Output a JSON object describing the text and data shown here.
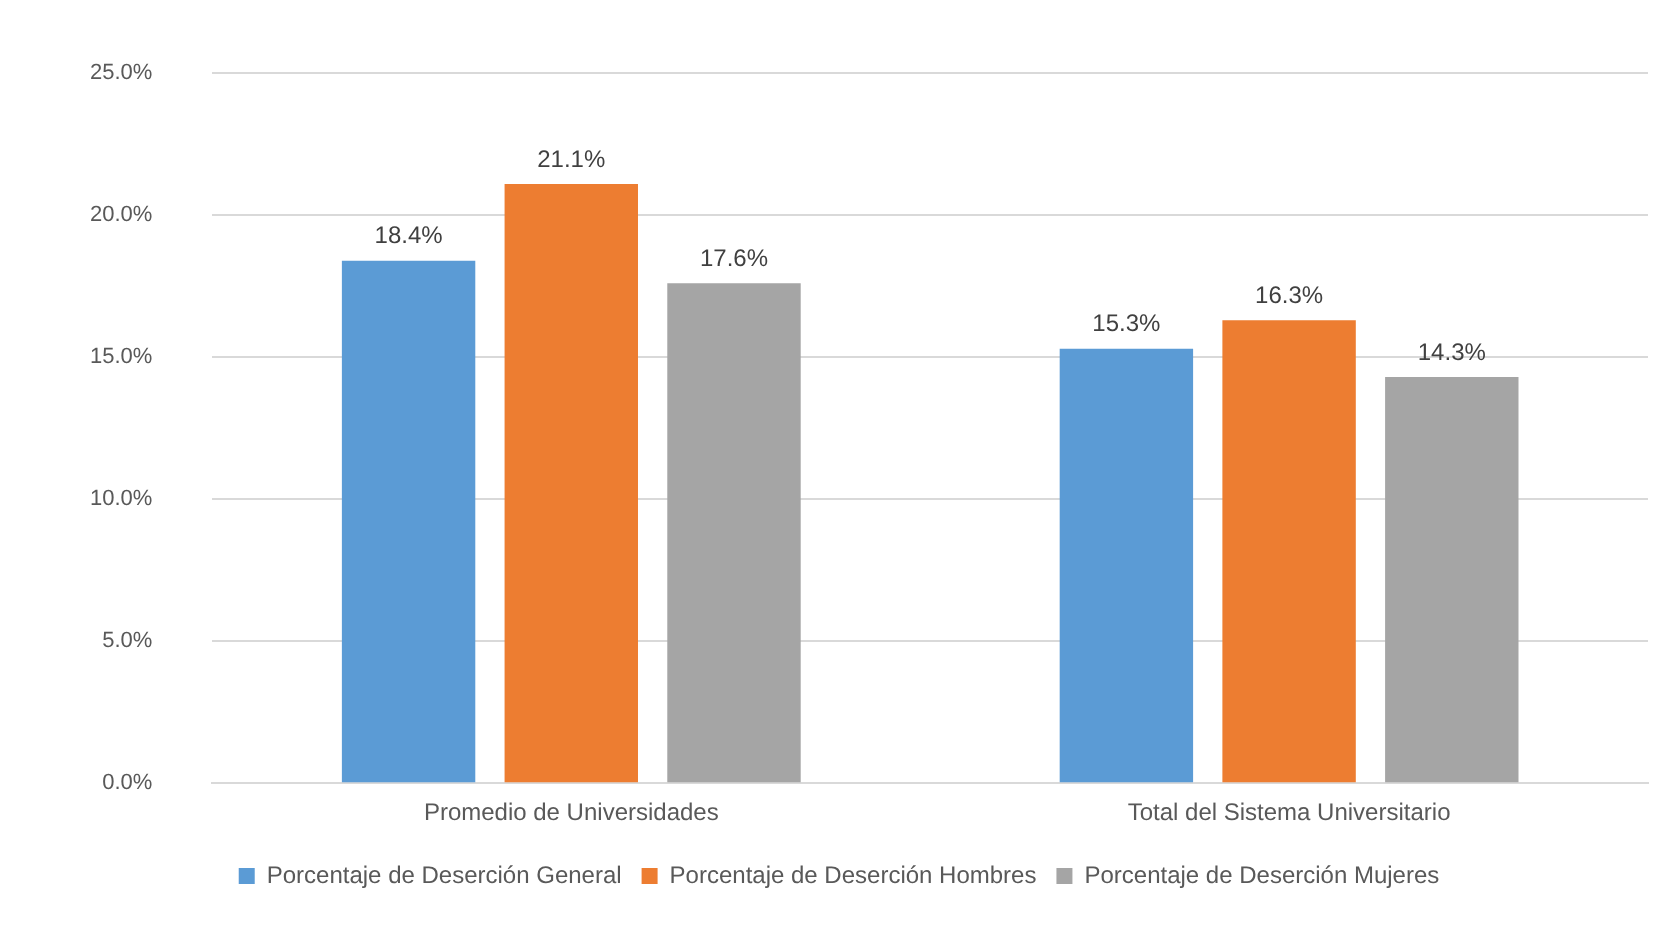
{
  "chart_data": {
    "type": "bar",
    "categories": [
      "Promedio de Universidades",
      "Total del Sistema Universitario"
    ],
    "series": [
      {
        "name": "Porcentaje de Deserción General",
        "color": "#5b9bd5",
        "values": [
          18.4,
          15.3
        ],
        "value_labels": [
          "18.4%",
          "15.3%"
        ]
      },
      {
        "name": "Porcentaje de Deserción Hombres",
        "color": "#ed7d31",
        "values": [
          21.1,
          16.3
        ],
        "value_labels": [
          "21.1%",
          "16.3%"
        ]
      },
      {
        "name": "Porcentaje de Deserción Mujeres",
        "color": "#a5a5a5",
        "values": [
          17.6,
          14.3
        ],
        "value_labels": [
          "17.6%",
          "14.3%"
        ]
      }
    ],
    "ylim": [
      0,
      25
    ],
    "yticks": [
      {
        "value": 0,
        "label": "0.0%"
      },
      {
        "value": 5,
        "label": "5.0%"
      },
      {
        "value": 10,
        "label": "10.0%"
      },
      {
        "value": 15,
        "label": "15.0%"
      },
      {
        "value": 20,
        "label": "20.0%"
      },
      {
        "value": 25,
        "label": "25.0%"
      }
    ],
    "grid": "y",
    "legend": "bottom"
  }
}
